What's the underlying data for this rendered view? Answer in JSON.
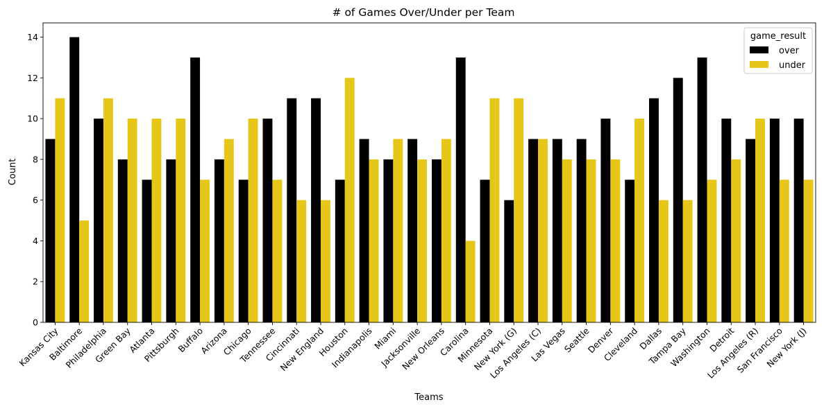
{
  "chart_data": {
    "type": "bar",
    "title": "# of Games Over/Under per Team",
    "xlabel": "Teams",
    "ylabel": "Count",
    "ylim": [
      0,
      14.7
    ],
    "yticks": [
      0,
      2,
      4,
      6,
      8,
      10,
      12,
      14
    ],
    "legend_title": "game_result",
    "legend_position": "top-right",
    "categories": [
      "Kansas City",
      "Baltimore",
      "Philadelphia",
      "Green Bay",
      "Atlanta",
      "Pittsburgh",
      "Buffalo",
      "Arizona",
      "Chicago",
      "Tennessee",
      "Cincinnati",
      "New England",
      "Houston",
      "Indianapolis",
      "Miami",
      "Jacksonville",
      "New Orleans",
      "Carolina",
      "Minnesota",
      "New York (G)",
      "Los Angeles (C)",
      "Las Vegas",
      "Seattle",
      "Denver",
      "Cleveland",
      "Dallas",
      "Tampa Bay",
      "Washington",
      "Detroit",
      "Los Angeles (R)",
      "San Francisco",
      "New York (J)"
    ],
    "series": [
      {
        "name": "over",
        "color": "#000000",
        "values": [
          9,
          14,
          10,
          8,
          7,
          8,
          13,
          8,
          7,
          10,
          11,
          11,
          7,
          9,
          8,
          9,
          8,
          13,
          7,
          6,
          9,
          9,
          9,
          10,
          7,
          11,
          12,
          13,
          10,
          9,
          10,
          10
        ]
      },
      {
        "name": "under",
        "color": "#e6c619",
        "values": [
          11,
          5,
          11,
          10,
          10,
          10,
          7,
          9,
          10,
          7,
          6,
          6,
          12,
          8,
          9,
          8,
          9,
          4,
          11,
          11,
          9,
          8,
          8,
          8,
          10,
          6,
          6,
          7,
          8,
          10,
          7,
          7
        ]
      }
    ]
  }
}
